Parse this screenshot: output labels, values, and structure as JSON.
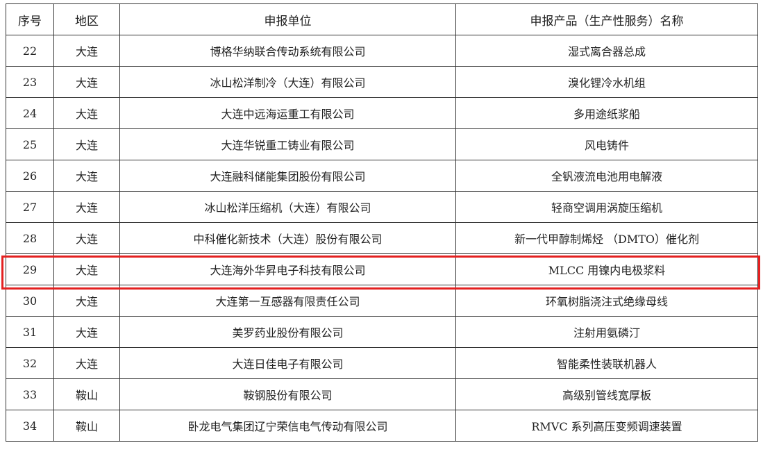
{
  "table": {
    "headers": [
      "序号",
      "地区",
      "申报单位",
      "申报产品（生产性服务）名称"
    ],
    "rows": [
      [
        "22",
        "大连",
        "博格华纳联合传动系统有限公司",
        "湿式离合器总成"
      ],
      [
        "23",
        "大连",
        "冰山松洋制冷（大连）有限公司",
        "溴化锂冷水机组"
      ],
      [
        "24",
        "大连",
        "大连中远海运重工有限公司",
        "多用途纸浆船"
      ],
      [
        "25",
        "大连",
        "大连华锐重工铸业有限公司",
        "风电铸件"
      ],
      [
        "26",
        "大连",
        "大连融科储能集团股份有限公司",
        "全钒液流电池用电解液"
      ],
      [
        "27",
        "大连",
        "冰山松洋压缩机（大连）有限公司",
        "轻商空调用涡旋压缩机"
      ],
      [
        "28",
        "大连",
        "中科催化新技术（大连）股份有限公司",
        "新一代甲醇制烯烃 （DMTO）催化剂"
      ],
      [
        "29",
        "大连",
        "大连海外华昇电子科技有限公司",
        "MLCC 用镍内电极浆料"
      ],
      [
        "30",
        "大连",
        "大连第一互感器有限责任公司",
        "环氧树脂浇注式绝缘母线"
      ],
      [
        "31",
        "大连",
        "美罗药业股份有限公司",
        "注射用氨磷汀"
      ],
      [
        "32",
        "大连",
        "大连日佳电子有限公司",
        "智能柔性装联机器人"
      ],
      [
        "33",
        "鞍山",
        "鞍钢股份有限公司",
        "高级别管线宽厚板"
      ],
      [
        "34",
        "鞍山",
        "卧龙电气集团辽宁荣信电气传动有限公司",
        "RMVC 系列高压变频调速装置"
      ]
    ],
    "highlighted_row": "29",
    "highlight_color": "#e32020"
  }
}
